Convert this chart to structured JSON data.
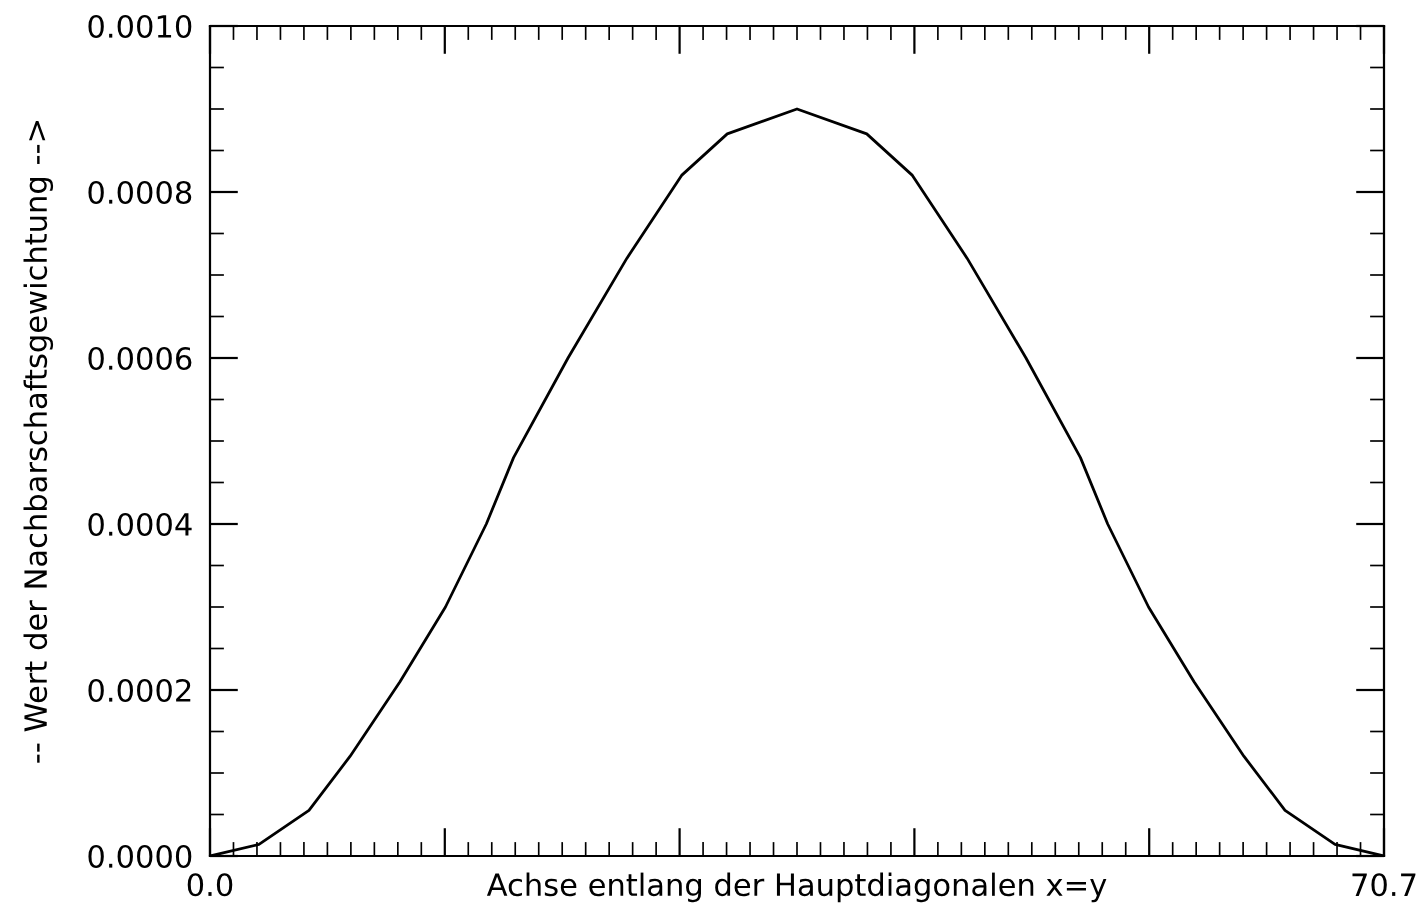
{
  "chart_data": {
    "type": "line",
    "xlabel": "Achse entlang der Hauptdiagonalen x=y",
    "ylabel": "-- Wert der Nachbarschaftsgewichtung -->",
    "x": [
      0,
      2.95,
      5.96,
      8.43,
      11.44,
      14.18,
      16.64,
      18.28,
      21.56,
      25.1,
      28.4,
      31.15,
      35.35,
      39.55,
      42.3,
      45.6,
      49.14,
      52.42,
      54.06,
      56.52,
      59.26,
      62.27,
      64.74,
      67.75,
      70.7
    ],
    "series": [
      {
        "color": "#000000",
        "values": [
          0,
          1.4e-05,
          5.5e-05,
          0.00012,
          0.00021,
          0.0003,
          0.0004,
          0.00048,
          0.0006,
          0.00072,
          0.00082,
          0.00087,
          0.0009,
          0.00087,
          0.00082,
          0.00072,
          0.0006,
          0.00048,
          0.0004,
          0.0003,
          0.00021,
          0.00012,
          5.5e-05,
          1.4e-05,
          0
        ]
      }
    ],
    "xlim": [
      0,
      70.7
    ],
    "xticks": [
      {
        "value": 0,
        "label": "0.0"
      },
      {
        "value": 14.14,
        "label": null
      },
      {
        "value": 28.28,
        "label": null
      },
      {
        "value": 42.42,
        "label": null
      },
      {
        "value": 56.56,
        "label": null
      },
      {
        "value": 70.7,
        "label": "70.7"
      }
    ],
    "ylim": [
      0,
      0.001
    ],
    "yticks": [
      {
        "value": 0,
        "label": "0.0000"
      },
      {
        "value": 0.0002,
        "label": "0.0002"
      },
      {
        "value": 0.0004,
        "label": "0.0004"
      },
      {
        "value": 0.0006,
        "label": "0.0006"
      },
      {
        "value": 0.0008,
        "label": "0.0008"
      },
      {
        "value": 0.001,
        "label": "0.0010"
      }
    ],
    "grid": false,
    "legend": false,
    "marker": "none",
    "line_style": "solid"
  }
}
